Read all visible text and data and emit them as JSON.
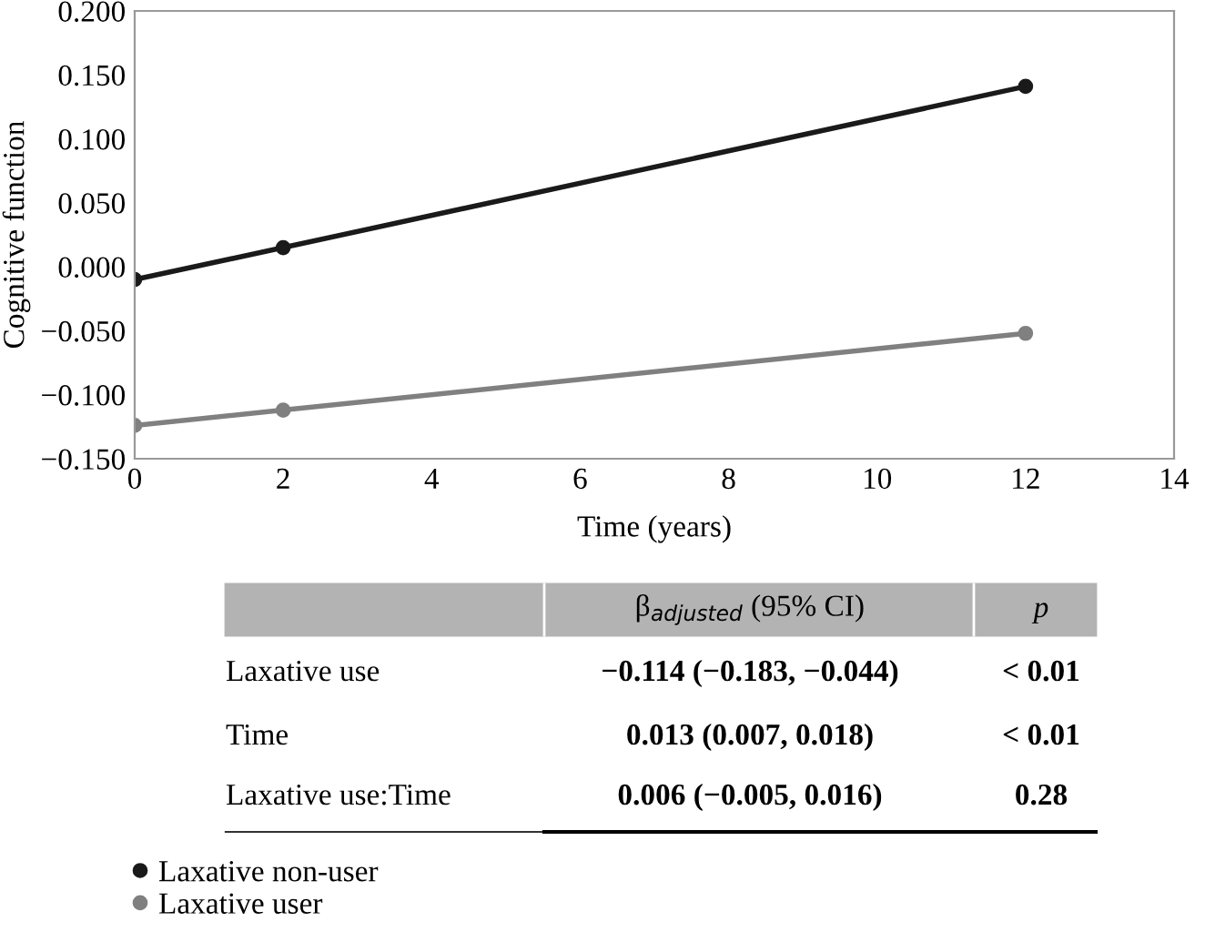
{
  "chart_data": {
    "type": "line",
    "xlabel": "Time (years)",
    "ylabel": "Cognitive function",
    "series": [
      {
        "name": "Laxative non-user",
        "color": "#1a1a1a",
        "x": [
          0,
          2,
          12
        ],
        "values": [
          -0.01,
          0.015,
          0.141
        ]
      },
      {
        "name": "Laxative user",
        "color": "#808080",
        "x": [
          0,
          2,
          12
        ],
        "values": [
          -0.124,
          -0.112,
          -0.052
        ]
      }
    ],
    "xlim": [
      0,
      14
    ],
    "xticks": [
      0,
      2,
      4,
      6,
      8,
      10,
      12,
      14
    ],
    "ylim": [
      -0.15,
      0.2
    ],
    "yticks": [
      {
        "value": -0.15,
        "label": "−0.150"
      },
      {
        "value": -0.1,
        "label": "−0.100"
      },
      {
        "value": -0.05,
        "label": "−0.050"
      },
      {
        "value": 0,
        "label": "0.000"
      },
      {
        "value": 0.05,
        "label": "0.050"
      },
      {
        "value": 0.1,
        "label": "0.100"
      },
      {
        "value": 0.15,
        "label": "0.150"
      },
      {
        "value": 0.2,
        "label": "0.200"
      }
    ],
    "grid": false,
    "marker": "circle",
    "line_style": "solid",
    "legend": "bottom left",
    "annotations": [
      "β$_{adjusted}$ (95% CI)",
      "p",
      "Laxative use",
      "−0.114 (−0.183, −0.044)",
      "< 0.01",
      "Time",
      "0.013 (0.007, 0.018)",
      "< 0.01",
      "Laxative use:Time",
      "0.006 (−0.005, 0.016)",
      "0.28"
    ]
  }
}
